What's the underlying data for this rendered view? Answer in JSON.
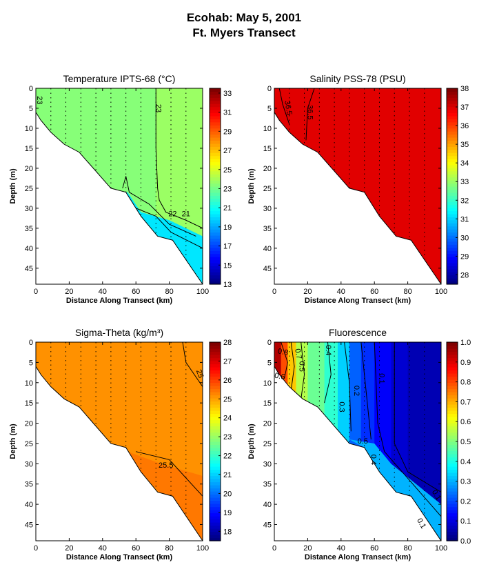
{
  "figure": {
    "title_line1": "Ecohab:  May 5, 2001",
    "title_line2": "Ft. Myers Transect"
  },
  "chart_data": [
    {
      "type": "heatmap",
      "title": "Temperature IPTS-68 (°C)",
      "xlabel": "Distance Along Transect (km)",
      "ylabel": "Depth (m)",
      "xlim": [
        0,
        100
      ],
      "ylim": [
        0,
        49
      ],
      "xticks": [
        0,
        20,
        40,
        60,
        80,
        100
      ],
      "yticks": [
        0,
        5,
        10,
        15,
        20,
        25,
        30,
        35,
        40,
        45
      ],
      "colorbar": {
        "min": 13,
        "max": 33.5,
        "ticks": [
          13,
          15,
          17,
          19,
          21,
          23,
          25,
          27,
          29,
          31,
          33
        ]
      },
      "fill_value": 23.4,
      "bottom_profile": [
        [
          0,
          6
        ],
        [
          3,
          8
        ],
        [
          9,
          11
        ],
        [
          17,
          14
        ],
        [
          26,
          16
        ],
        [
          45,
          25
        ],
        [
          54,
          26
        ],
        [
          63,
          32
        ],
        [
          73,
          37
        ],
        [
          82,
          38
        ],
        [
          100,
          49
        ]
      ],
      "contour_labels": [
        "23",
        "23",
        "22",
        "21"
      ],
      "station_x": [
        0,
        9,
        18,
        27,
        36,
        45,
        54,
        63,
        72,
        81,
        90,
        100
      ]
    },
    {
      "type": "heatmap",
      "title": "Salinity PSS-78 (PSU)",
      "xlabel": "Distance Along Transect (km)",
      "ylabel": "Depth (m)",
      "xlim": [
        0,
        100
      ],
      "ylim": [
        0,
        49
      ],
      "xticks": [
        0,
        20,
        40,
        60,
        80,
        100
      ],
      "yticks": [
        0,
        5,
        10,
        15,
        20,
        25,
        30,
        35,
        40,
        45
      ],
      "colorbar": {
        "min": 27.5,
        "max": 38,
        "ticks": [
          28,
          29,
          30,
          31,
          32,
          33,
          34,
          35,
          36,
          37,
          38
        ]
      },
      "fill_value": 37.0,
      "bottom_profile": [
        [
          0,
          6
        ],
        [
          3,
          8
        ],
        [
          9,
          11
        ],
        [
          17,
          14
        ],
        [
          26,
          16
        ],
        [
          45,
          25
        ],
        [
          54,
          26
        ],
        [
          63,
          32
        ],
        [
          73,
          37
        ],
        [
          82,
          38
        ],
        [
          100,
          49
        ]
      ],
      "contour_labels": [
        "36.5",
        "36.5"
      ],
      "station_x": [
        0,
        9,
        18,
        27,
        36,
        45,
        54,
        63,
        72,
        81,
        90,
        100
      ]
    },
    {
      "type": "heatmap",
      "title": "Sigma-Theta (kg/m³)",
      "xlabel": "Distance Along Transect (km)",
      "ylabel": "Depth (m)",
      "xlim": [
        0,
        100
      ],
      "ylim": [
        0,
        49
      ],
      "xticks": [
        0,
        20,
        40,
        60,
        80,
        100
      ],
      "yticks": [
        0,
        5,
        10,
        15,
        20,
        25,
        30,
        35,
        40,
        45
      ],
      "colorbar": {
        "min": 17.5,
        "max": 28,
        "ticks": [
          18,
          19,
          20,
          21,
          22,
          23,
          24,
          25,
          26,
          27,
          28
        ]
      },
      "fill_value": 25.2,
      "bottom_profile": [
        [
          0,
          6
        ],
        [
          3,
          8
        ],
        [
          9,
          11
        ],
        [
          17,
          14
        ],
        [
          26,
          16
        ],
        [
          45,
          25
        ],
        [
          54,
          26
        ],
        [
          63,
          32
        ],
        [
          73,
          37
        ],
        [
          82,
          38
        ],
        [
          100,
          49
        ]
      ],
      "contour_labels": [
        "25",
        "25.5"
      ],
      "station_x": [
        0,
        9,
        18,
        27,
        36,
        45,
        54,
        63,
        72,
        81,
        90,
        100
      ]
    },
    {
      "type": "heatmap",
      "title": "Fluorescence",
      "xlabel": "Distance Along Transect (km)",
      "ylabel": "Depth (m)",
      "xlim": [
        0,
        100
      ],
      "ylim": [
        0,
        49
      ],
      "xticks": [
        0,
        20,
        40,
        60,
        80,
        100
      ],
      "yticks": [
        0,
        5,
        10,
        15,
        20,
        25,
        30,
        35,
        40,
        45
      ],
      "colorbar": {
        "min": 0,
        "max": 1,
        "ticks": [
          "0.0",
          "0.1",
          "0.2",
          "0.3",
          "0.4",
          "0.5",
          "0.6",
          "0.7",
          "0.8",
          "0.9",
          "1.0"
        ]
      },
      "bottom_profile": [
        [
          0,
          6
        ],
        [
          3,
          8
        ],
        [
          9,
          11
        ],
        [
          17,
          14
        ],
        [
          26,
          16
        ],
        [
          45,
          25
        ],
        [
          54,
          26
        ],
        [
          63,
          32
        ],
        [
          73,
          37
        ],
        [
          82,
          38
        ],
        [
          100,
          49
        ]
      ],
      "contour_labels": [
        "0.8",
        "0.7",
        "0.6",
        "0.5",
        "0.4",
        "0.3",
        "0.2",
        "0.1",
        "0.5",
        "0.4",
        "0.1",
        "0.1"
      ],
      "station_x": [
        0,
        9,
        18,
        27,
        36,
        45,
        54,
        63,
        72,
        81,
        90,
        100
      ]
    }
  ]
}
